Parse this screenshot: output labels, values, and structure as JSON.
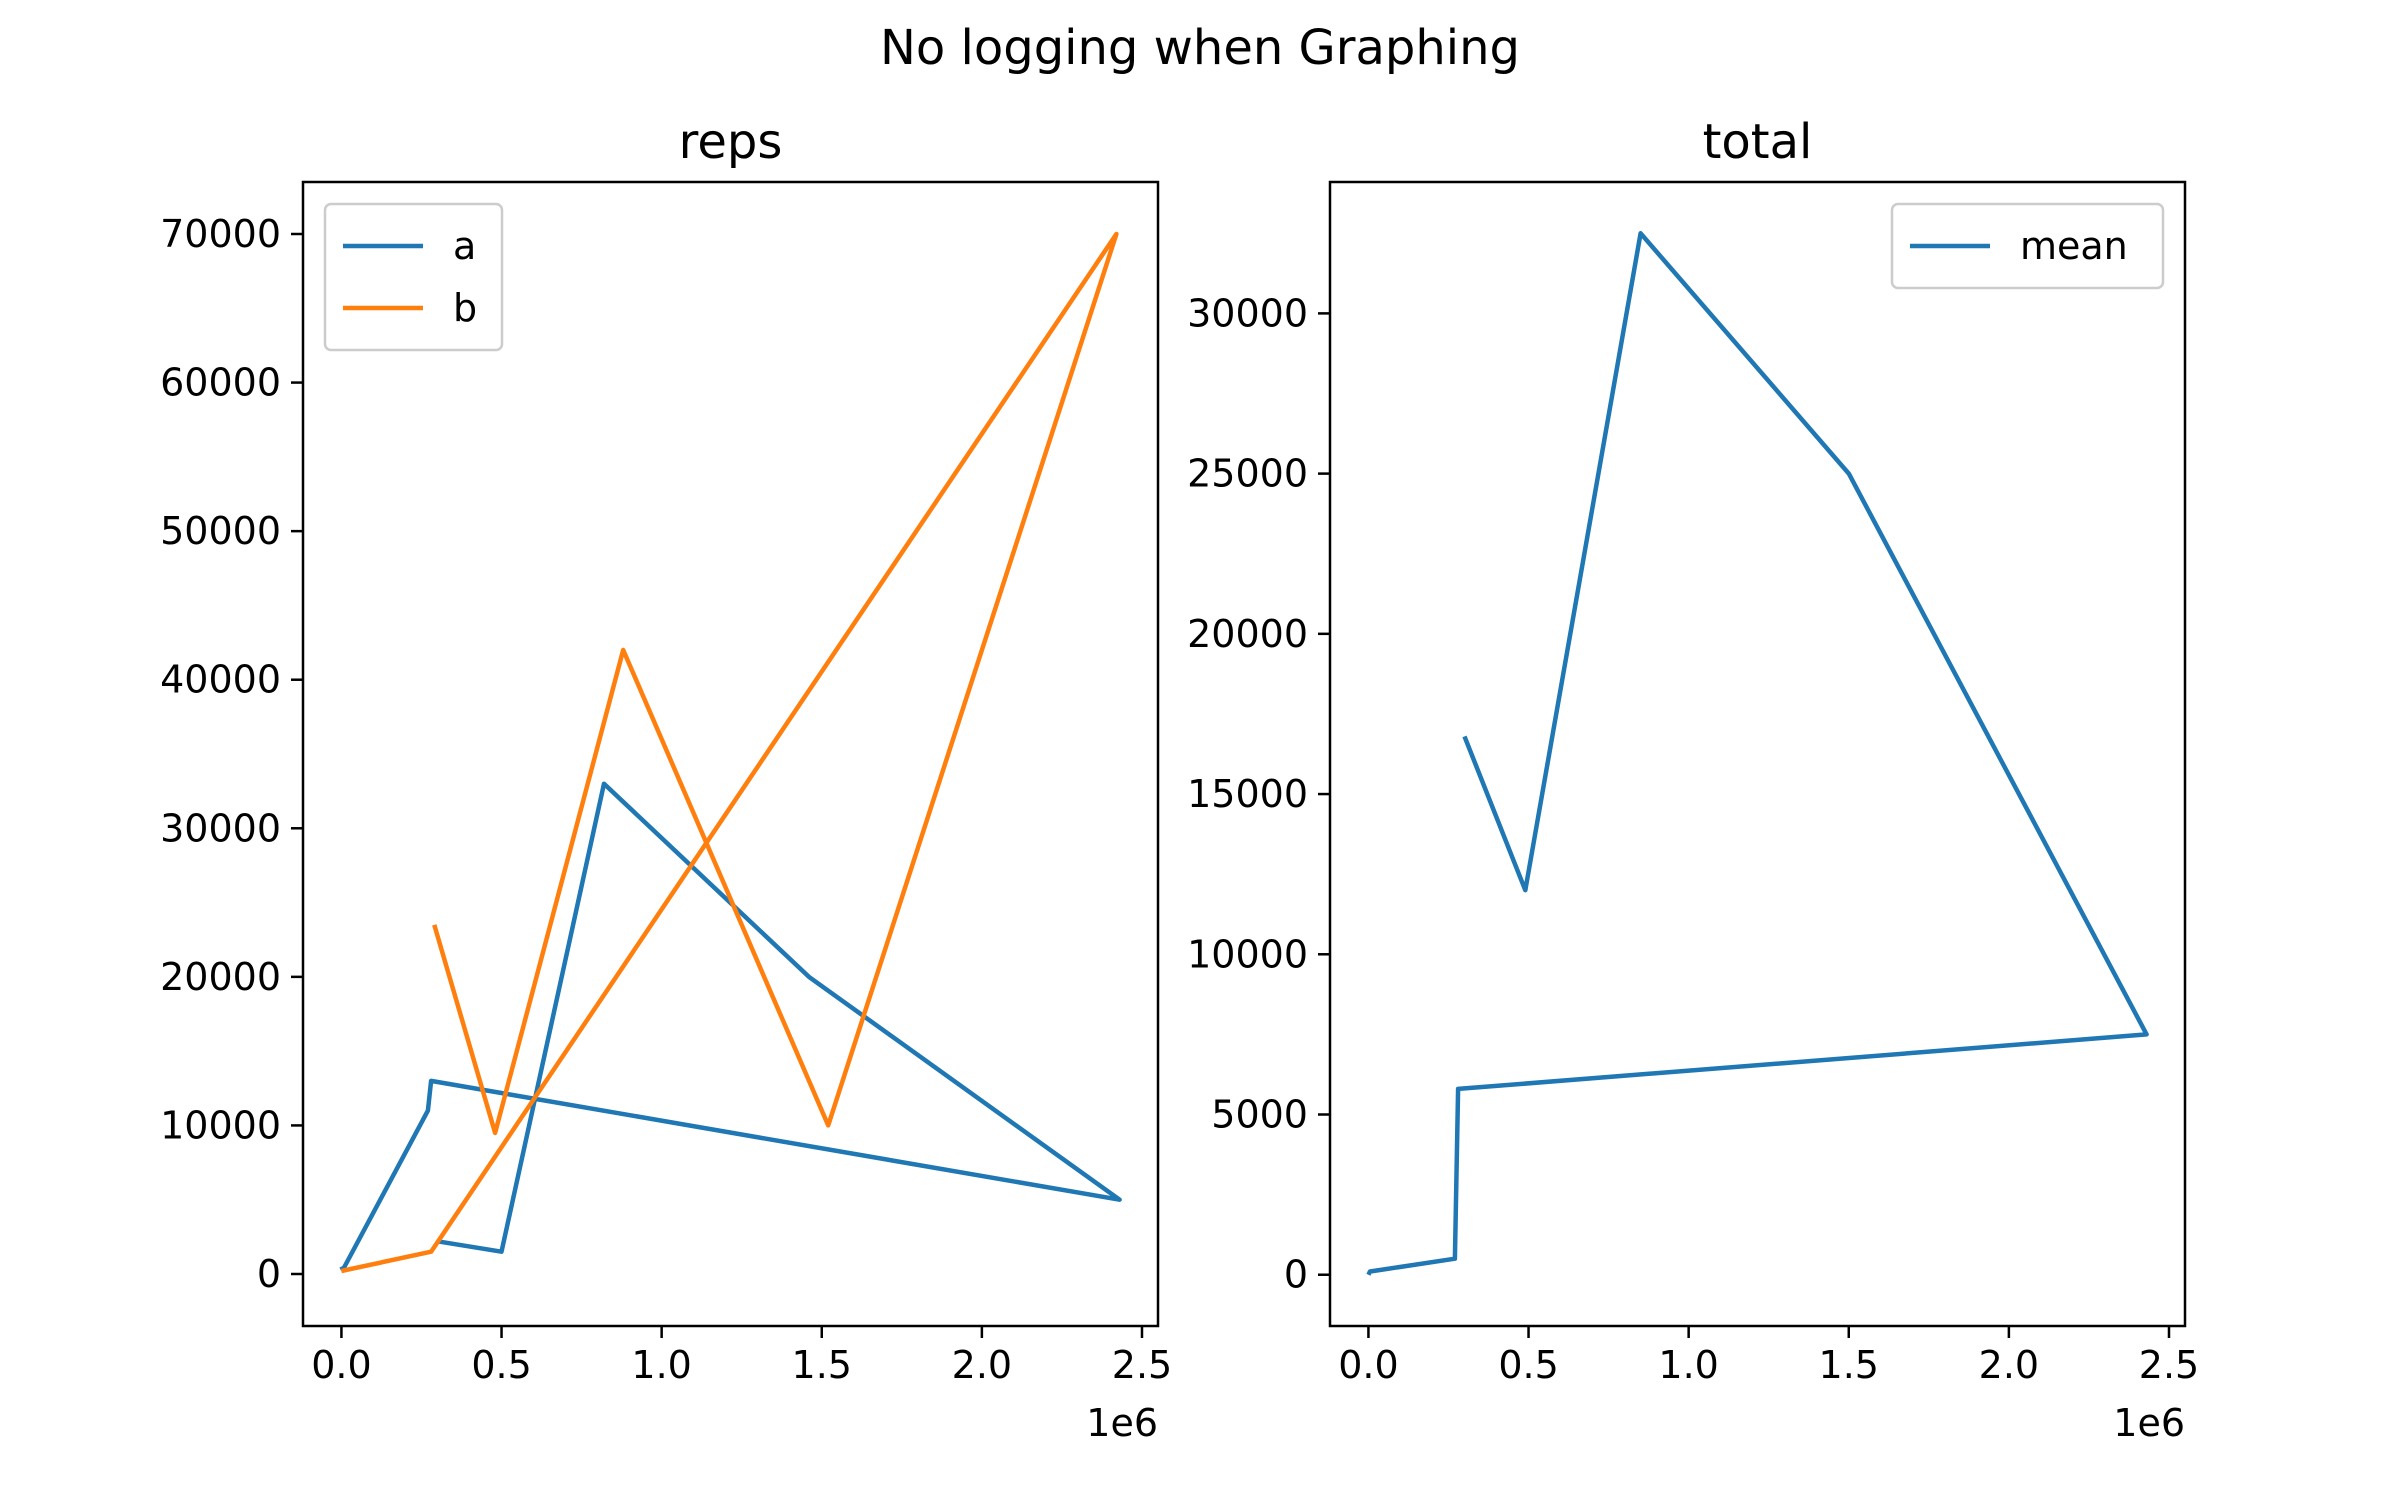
{
  "figure": {
    "suptitle": "No logging  when Graphing"
  },
  "chart_data": [
    {
      "type": "line",
      "title": "reps",
      "xlabel": "",
      "ylabel": "",
      "x_offset_label": "1e6",
      "xlim": [
        -120000,
        2550000
      ],
      "ylim": [
        -3500,
        73500
      ],
      "xticks": [
        0,
        500000,
        1000000,
        1500000,
        2000000,
        2500000
      ],
      "xtick_labels": [
        "0.0",
        "0.5",
        "1.0",
        "1.5",
        "2.0",
        "2.5"
      ],
      "yticks": [
        0,
        10000,
        20000,
        30000,
        40000,
        50000,
        60000,
        70000
      ],
      "ytick_labels": [
        "0",
        "10000",
        "20000",
        "30000",
        "40000",
        "50000",
        "60000",
        "70000"
      ],
      "grid": false,
      "legend": "upper-left",
      "series": [
        {
          "name": "a",
          "color": "#1f77b4",
          "x": [
            0,
            5000,
            270000,
            280000,
            2430000,
            1460000,
            820000,
            500000,
            300000
          ],
          "y": [
            500,
            300,
            11000,
            13000,
            5000,
            20000,
            33000,
            1500,
            2200
          ]
        },
        {
          "name": "b",
          "color": "#ff7f0e",
          "x": [
            0,
            280000,
            2420000,
            1520000,
            880000,
            480000,
            290000
          ],
          "y": [
            200,
            1500,
            70000,
            10000,
            42000,
            9500,
            23500
          ]
        }
      ]
    },
    {
      "type": "line",
      "title": "total",
      "xlabel": "",
      "ylabel": "",
      "x_offset_label": "1e6",
      "xlim": [
        -120000,
        2550000
      ],
      "ylim": [
        -1600,
        34100
      ],
      "xticks": [
        0,
        500000,
        1000000,
        1500000,
        2000000,
        2500000
      ],
      "xtick_labels": [
        "0.0",
        "0.5",
        "1.0",
        "1.5",
        "2.0",
        "2.5"
      ],
      "yticks": [
        0,
        5000,
        10000,
        15000,
        20000,
        25000,
        30000
      ],
      "ytick_labels": [
        "0",
        "5000",
        "10000",
        "15000",
        "20000",
        "25000",
        "30000"
      ],
      "grid": false,
      "legend": "upper-right",
      "series": [
        {
          "name": "mean",
          "color": "#1f77b4",
          "x": [
            0,
            5000,
            270000,
            280000,
            2430000,
            1500000,
            850000,
            490000,
            300000
          ],
          "y": [
            0,
            100,
            500,
            5800,
            7500,
            25000,
            32500,
            12000,
            16800
          ]
        }
      ]
    }
  ]
}
